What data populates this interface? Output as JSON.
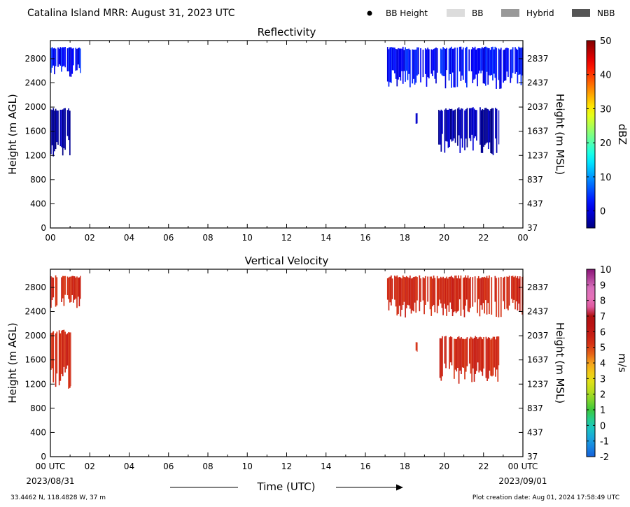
{
  "header": {
    "title": "Catalina Island MRR:  August 31, 2023 UTC",
    "legend": [
      {
        "label": "BB Height",
        "kind": "dot",
        "color": "#000000"
      },
      {
        "label": "BB",
        "kind": "swatch",
        "color": "#dcdcdc"
      },
      {
        "label": "Hybrid",
        "kind": "swatch",
        "color": "#999999"
      },
      {
        "label": "NBB",
        "kind": "swatch",
        "color": "#555555"
      }
    ]
  },
  "footer": {
    "location": "33.4462 N, 118.4828 W, 37 m",
    "creation": "Plot creation date: Aug 01, 2024 17:58:49 UTC",
    "start_date": "2023/08/31",
    "end_date": "2023/09/01",
    "xlabel": "Time (UTC)"
  },
  "chart_data": [
    {
      "type": "heatmap",
      "title": "Reflectivity",
      "ylabel": "Height (m AGL)",
      "ylabel_right": "Height (m MSL)",
      "x_ticks": [
        "00",
        "02",
        "04",
        "06",
        "08",
        "10",
        "12",
        "14",
        "16",
        "18",
        "20",
        "22",
        "00"
      ],
      "xlim": [
        0,
        24
      ],
      "y_ticks": [
        0,
        400,
        800,
        1200,
        1600,
        2000,
        2400,
        2800
      ],
      "y_ticks_right": [
        "37",
        "437",
        "837",
        "1237",
        "1637",
        "2037",
        "2437",
        "2837"
      ],
      "ylim": [
        0,
        3100
      ],
      "colorbar": {
        "label": "dBZ",
        "range": [
          -5,
          50
        ],
        "ticks": [
          0,
          10,
          20,
          30,
          40,
          50
        ],
        "colormap": "jet"
      },
      "regions": [
        {
          "t_start": 0.0,
          "t_end": 1.55,
          "h_bottom": 2500,
          "h_top": 3000,
          "value": 2
        },
        {
          "t_start": 0.0,
          "t_end": 1.05,
          "h_bottom": 1150,
          "h_top": 2000,
          "value": -3
        },
        {
          "t_start": 17.1,
          "t_end": 24.0,
          "h_bottom": 2300,
          "h_top": 3000,
          "value": 2
        },
        {
          "t_start": 18.55,
          "t_end": 18.65,
          "h_bottom": 1700,
          "h_top": 1900,
          "value": -3
        },
        {
          "t_start": 19.7,
          "t_end": 22.8,
          "h_bottom": 1200,
          "h_top": 2000,
          "value": -3
        }
      ]
    },
    {
      "type": "heatmap",
      "title": "Vertical Velocity",
      "ylabel": "Height (m AGL)",
      "ylabel_right": "Height (m MSL)",
      "x_ticks": [
        "00 UTC",
        "02",
        "04",
        "06",
        "08",
        "10",
        "12",
        "14",
        "16",
        "18",
        "20",
        "22",
        "00 UTC"
      ],
      "xlim": [
        0,
        24
      ],
      "y_ticks": [
        0,
        400,
        800,
        1200,
        1600,
        2000,
        2400,
        2800
      ],
      "y_ticks_right": [
        "37",
        "437",
        "837",
        "1237",
        "1637",
        "2037",
        "2437",
        "2837"
      ],
      "ylim": [
        0,
        3100
      ],
      "colorbar": {
        "label": "m/s",
        "range": [
          -2,
          10
        ],
        "ticks": [
          -2,
          -1,
          0,
          1,
          2,
          3,
          4,
          5,
          6,
          7,
          8,
          9,
          10
        ],
        "colormap": "velocity"
      },
      "regions": [
        {
          "t_start": 0.0,
          "t_end": 1.55,
          "h_bottom": 2450,
          "h_top": 3000,
          "value": 5.5
        },
        {
          "t_start": 0.0,
          "t_end": 1.05,
          "h_bottom": 1100,
          "h_top": 2100,
          "value": 5.5
        },
        {
          "t_start": 17.1,
          "t_end": 24.0,
          "h_bottom": 2300,
          "h_top": 3000,
          "value": 5.5
        },
        {
          "t_start": 18.55,
          "t_end": 18.65,
          "h_bottom": 1700,
          "h_top": 1900,
          "value": 5.5
        },
        {
          "t_start": 19.7,
          "t_end": 22.8,
          "h_bottom": 1200,
          "h_top": 2000,
          "value": 5.5
        }
      ]
    }
  ]
}
